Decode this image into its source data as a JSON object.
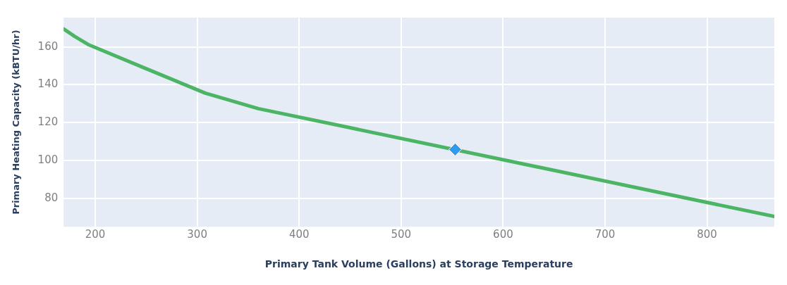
{
  "chart_data": {
    "type": "line",
    "xlabel": "Primary Tank Volume (Gallons) at Storage Temperature",
    "ylabel": "Primary Heating Capacity (kBTU/hr)",
    "xlim": [
      169,
      866
    ],
    "ylim": [
      65,
      175.5
    ],
    "xticks": [
      200,
      300,
      400,
      500,
      600,
      700,
      800
    ],
    "yticks": [
      80,
      100,
      120,
      140,
      160
    ],
    "grid": true,
    "legend": false,
    "series": [
      {
        "type": "line",
        "color": "#4cb565",
        "x": [
          169,
          180,
          193,
          250,
          308,
          360,
          450,
          600,
          750,
          866
        ],
        "values": [
          169.5,
          165.5,
          161.3,
          148.5,
          135.6,
          127.4,
          117.3,
          100.4,
          83.5,
          70.4
        ]
      },
      {
        "type": "scatter",
        "color": "#2e9af0",
        "marker": "diamond",
        "x": [
          553
        ],
        "values": [
          105.8
        ]
      }
    ]
  }
}
